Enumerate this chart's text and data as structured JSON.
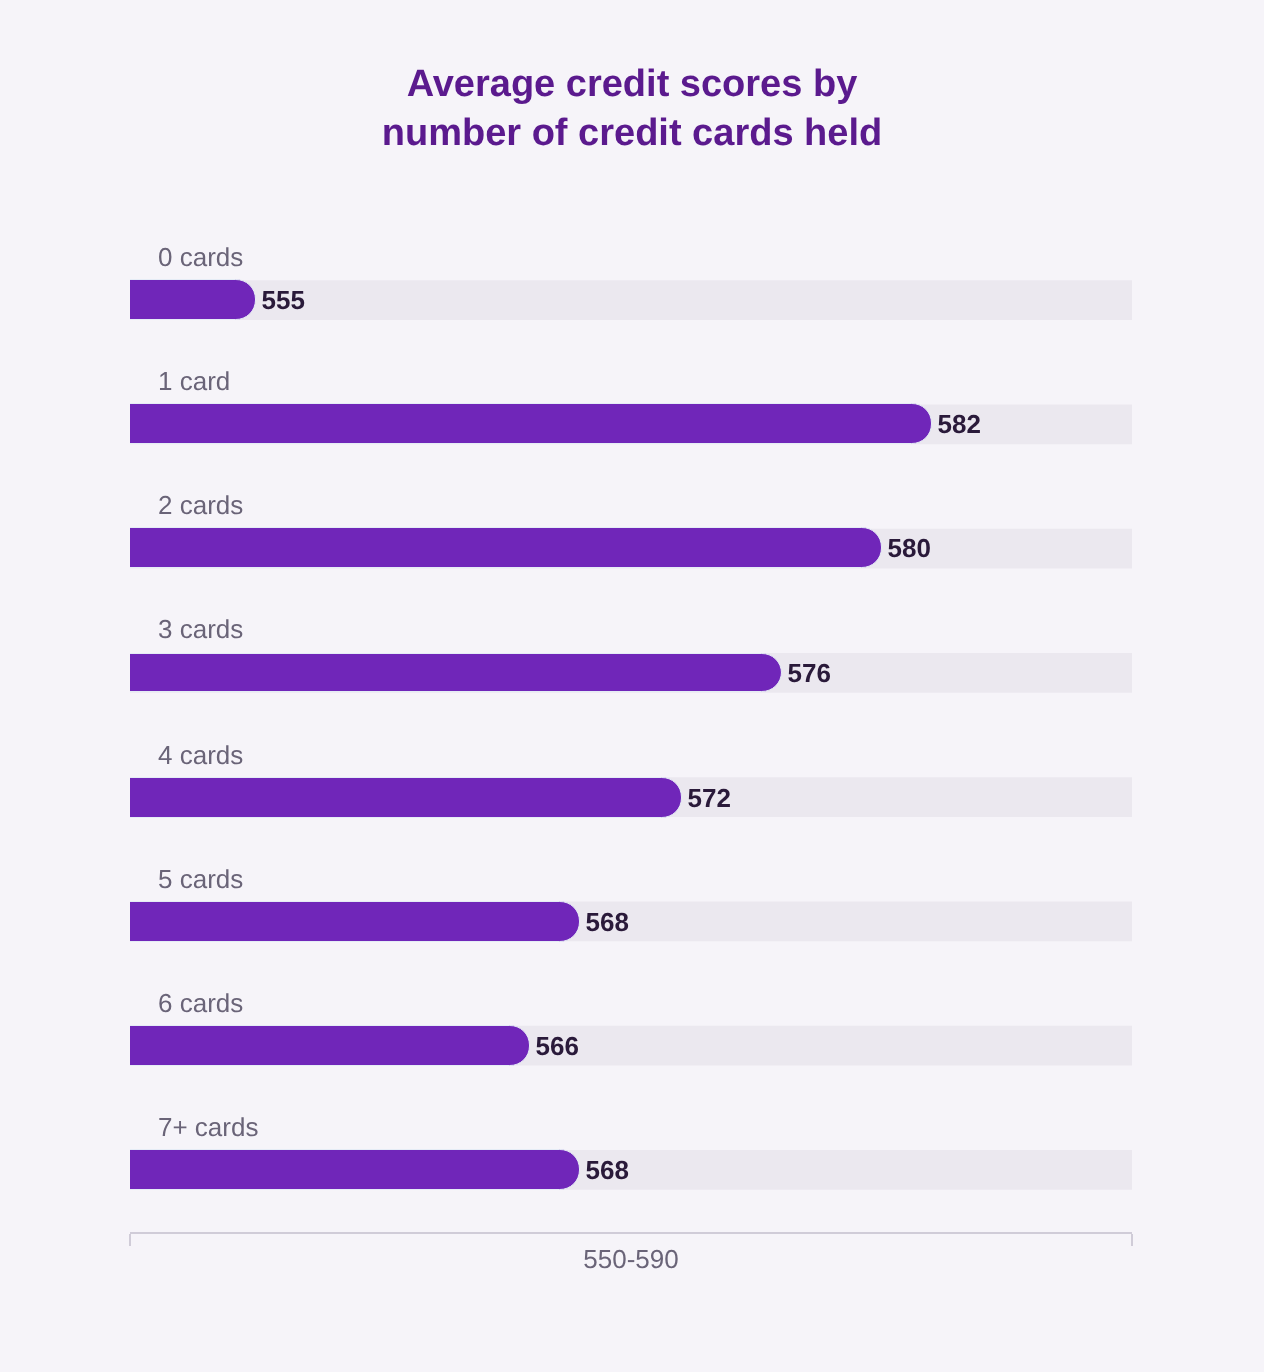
{
  "chart_data": {
    "type": "bar",
    "orientation": "horizontal",
    "title": "Average credit scores by\nnumber of credit cards held",
    "categories": [
      "0 cards",
      "1 card",
      "2 cards",
      "3 cards",
      "4 cards",
      "5 cards",
      "6 cards",
      "7+ cards"
    ],
    "values": [
      555,
      582,
      580,
      576,
      572,
      568,
      566,
      568
    ],
    "color": "#7026b9",
    "xlim": [
      550,
      590
    ],
    "xticks": [
      {
        "value": 550,
        "label": null
      },
      {
        "value": 590,
        "label": null
      }
    ],
    "xlabel": "550-590",
    "data_labels": true,
    "grid": false,
    "legend": false
  }
}
